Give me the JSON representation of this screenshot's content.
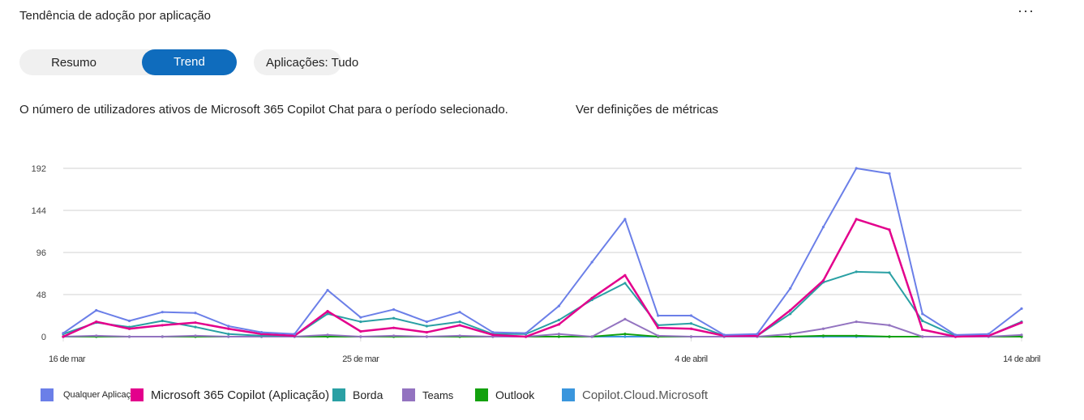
{
  "header": {
    "title": "Tendência de adoção por aplicação",
    "more_label": "···"
  },
  "toggle": {
    "summary_label": "Resumo",
    "trend_label": "Trend",
    "active": "Trend"
  },
  "filter": {
    "label": "Aplicações: Tudo"
  },
  "description": "O número de utilizadores ativos de Microsoft 365 Copilot Chat para o período selecionado.",
  "definitions_link": "Ver definições de métricas",
  "chart_data": {
    "type": "line",
    "x_ticks": [
      "16 de mar",
      "25 de mar",
      "4 de abril",
      "14 de abril"
    ],
    "x_tick_indices": [
      0,
      9,
      19,
      29
    ],
    "ylim": [
      0,
      192
    ],
    "y_ticks": [
      0,
      48,
      96,
      144,
      192
    ],
    "grid": true,
    "legend_position": "bottom-left",
    "series": [
      {
        "name": "Qualquer Aplicação",
        "color": "#6b7fe8",
        "values": [
          4,
          30,
          18,
          28,
          27,
          12,
          5,
          3,
          53,
          22,
          31,
          17,
          28,
          5,
          4,
          35,
          85,
          134,
          24,
          24,
          2,
          3,
          55,
          125,
          192,
          186,
          26,
          2,
          3,
          32
        ]
      },
      {
        "name": "Microsoft 365 Copilot (Aplicação)",
        "color": "#e3008c",
        "values": [
          0,
          17,
          9,
          13,
          16,
          9,
          3,
          1,
          29,
          6,
          10,
          5,
          13,
          2,
          0,
          14,
          44,
          70,
          10,
          9,
          1,
          1,
          30,
          64,
          134,
          122,
          8,
          0,
          1,
          16
        ]
      },
      {
        "name": "Borda",
        "color": "#2aa0a4",
        "values": [
          3,
          16,
          11,
          18,
          11,
          3,
          1,
          1,
          26,
          17,
          21,
          12,
          17,
          3,
          3,
          19,
          42,
          61,
          13,
          15,
          1,
          1,
          26,
          62,
          74,
          73,
          18,
          1,
          1,
          17
        ]
      },
      {
        "name": "Teams",
        "color": "#9373c0",
        "values": [
          0,
          1,
          0,
          0,
          1,
          0,
          0,
          0,
          2,
          0,
          1,
          0,
          1,
          0,
          0,
          3,
          0,
          20,
          1,
          0,
          0,
          0,
          3,
          9,
          17,
          13,
          0,
          0,
          0,
          2
        ]
      },
      {
        "name": "Outlook",
        "color": "#13a10e",
        "values": [
          0,
          0,
          0,
          0,
          0,
          0,
          0,
          0,
          0,
          0,
          0,
          0,
          0,
          0,
          0,
          0,
          0,
          3,
          0,
          0,
          0,
          0,
          0,
          1,
          1,
          0,
          0,
          0,
          0,
          0
        ]
      },
      {
        "name": "Copilot.Cloud.Microsoft",
        "color": "#3a96dd",
        "values": [
          0,
          0,
          0,
          0,
          0,
          0,
          0,
          0,
          0,
          0,
          0,
          0,
          0,
          0,
          0,
          0,
          0,
          0,
          0,
          0,
          0,
          0,
          0,
          0,
          0,
          0,
          0,
          0,
          0,
          0
        ]
      }
    ]
  }
}
